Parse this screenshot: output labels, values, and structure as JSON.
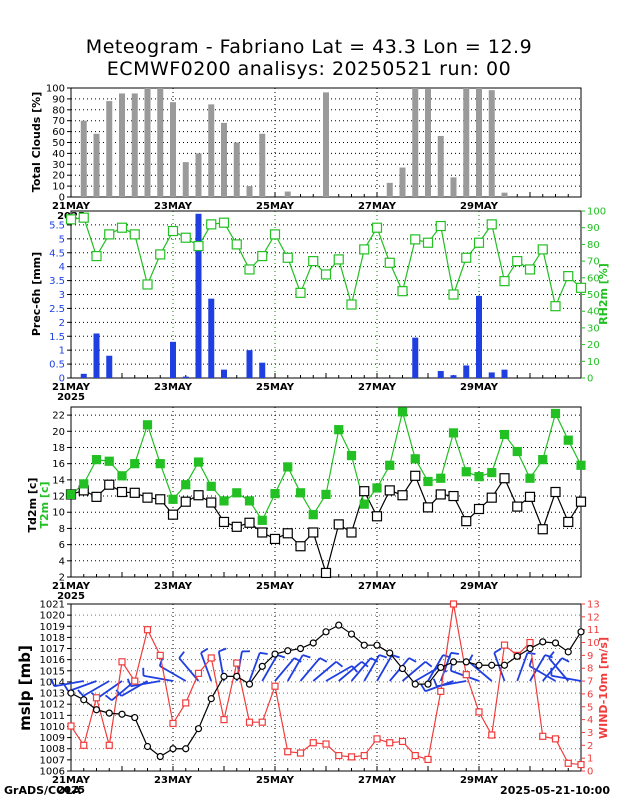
{
  "header": {
    "title_line1": "Meteogram - Fabriano Lat = 43.3 Lon = 12.9",
    "title_line2": "ECMWF0200 analisys: 20250521 run: 00"
  },
  "footer": {
    "left": "GrADS/COLA",
    "right": "2025-05-21-10:00"
  },
  "colors": {
    "clouds": "#9a9a9a",
    "precip": "#1f3fe0",
    "rh": "#22c022",
    "t2m": "#22c022",
    "td2m": "#000000",
    "mslp": "#000000",
    "wind": "#f03c3c",
    "barbs": "#1f3fe0",
    "grid": "#000000",
    "date_line": "#008800"
  },
  "chart_data": [
    {
      "id": "clouds",
      "type": "bar",
      "ylabel": "Total Clouds [%]",
      "ylim": [
        0,
        100
      ],
      "yticks": [
        0,
        10,
        20,
        30,
        40,
        50,
        60,
        70,
        80,
        90,
        100
      ],
      "grid": true,
      "xticks": [
        "21MAY",
        "23MAY",
        "25MAY",
        "27MAY",
        "29MAY"
      ],
      "xyear": "2025",
      "t": [
        0.25,
        0.5,
        0.75,
        1.0,
        1.25,
        1.5,
        1.75,
        2.0,
        2.25,
        2.5,
        2.75,
        3.0,
        3.25,
        3.5,
        3.75,
        4.25,
        5.0,
        6.25,
        6.5,
        6.75,
        7.0,
        7.25,
        7.5,
        7.75,
        8.0,
        8.25,
        8.5
      ],
      "values": [
        70,
        58,
        88,
        95,
        95,
        100,
        100,
        87,
        32,
        40,
        85,
        68,
        50,
        10,
        58,
        5,
        96,
        13,
        27,
        100,
        99,
        56,
        18,
        100,
        100,
        98,
        4
      ]
    },
    {
      "id": "precip_rh",
      "type": "bar+line",
      "ylabel": "Prec-6h [mm]",
      "ylim": [
        0,
        6
      ],
      "yticks": [
        0,
        0.5,
        1,
        1.5,
        2,
        2.5,
        3,
        3.5,
        4,
        4.5,
        5,
        5.5
      ],
      "y2label": "RH2m [%]",
      "y2lim": [
        0,
        100
      ],
      "y2ticks": [
        0,
        10,
        20,
        30,
        40,
        50,
        60,
        70,
        80,
        90,
        100
      ],
      "grid": true,
      "xticks": [
        "21MAY",
        "23MAY",
        "25MAY",
        "27MAY",
        "29MAY"
      ],
      "xyear": "2025",
      "precip_t": [
        0.25,
        0.5,
        0.75,
        2.0,
        2.25,
        2.5,
        2.75,
        3.0,
        3.5,
        3.75,
        6.75,
        7.25,
        7.5,
        7.75,
        8.0,
        8.25,
        8.5
      ],
      "precip": [
        0.15,
        1.6,
        0.8,
        1.3,
        0.05,
        5.9,
        2.85,
        0.3,
        1.0,
        0.55,
        1.45,
        0.25,
        0.1,
        0.45,
        2.95,
        0.2,
        0.3
      ],
      "rh_t": [
        0,
        0.25,
        0.5,
        0.75,
        1.0,
        1.25,
        1.5,
        1.75,
        2.0,
        2.25,
        2.5,
        2.75,
        3.0,
        3.25,
        3.5,
        3.75,
        4.0,
        4.25,
        4.5,
        4.75,
        5.0,
        5.25,
        5.5,
        5.75,
        6.0,
        6.25,
        6.5,
        6.75,
        7.0,
        7.25,
        7.5,
        7.75,
        8.0,
        8.25,
        8.5,
        8.75,
        9.0,
        9.25,
        9.5,
        9.75,
        10.0
      ],
      "rh": [
        95,
        96,
        73,
        86,
        90,
        86,
        56,
        74,
        88,
        84,
        79,
        92,
        93,
        80,
        65,
        73,
        86,
        72,
        51,
        70,
        62,
        71,
        44,
        77,
        90,
        69,
        52,
        83,
        81,
        91,
        50,
        72,
        81,
        92,
        58,
        70,
        65,
        77,
        43,
        61,
        54
      ]
    },
    {
      "id": "temperature",
      "type": "line",
      "ylabel_td": "Td2m [c]",
      "ylabel_t": "T2m [c]",
      "ylim": [
        2,
        23
      ],
      "yticks": [
        2,
        4,
        6,
        8,
        10,
        12,
        14,
        16,
        18,
        20,
        22
      ],
      "grid": true,
      "xticks": [
        "21MAY",
        "23MAY",
        "25MAY",
        "27MAY",
        "29MAY"
      ],
      "xyear": "2025",
      "t": [
        0,
        0.25,
        0.5,
        0.75,
        1.0,
        1.25,
        1.5,
        1.75,
        2.0,
        2.25,
        2.5,
        2.75,
        3.0,
        3.25,
        3.5,
        3.75,
        4.0,
        4.25,
        4.5,
        4.75,
        5.0,
        5.25,
        5.5,
        5.75,
        6.0,
        6.25,
        6.5,
        6.75,
        7.0,
        7.25,
        7.5,
        7.75,
        8.0,
        8.25,
        8.5,
        8.75,
        9.0,
        9.25,
        9.5,
        9.75,
        10.0
      ],
      "t2m": [
        12.2,
        13.5,
        16.5,
        16.3,
        14.5,
        16.0,
        20.8,
        16.0,
        11.6,
        13.4,
        16.2,
        13.2,
        11.4,
        12.4,
        11.4,
        9.0,
        12.3,
        15.6,
        12.4,
        9.7,
        12.2,
        20.2,
        17.0,
        11.0,
        13.0,
        15.8,
        22.4,
        16.6,
        13.8,
        14.2,
        19.8,
        15.0,
        14.4,
        14.9,
        19.6,
        17.5,
        14.2,
        16.5,
        22.2,
        18.9,
        15.8
      ],
      "td2m": [
        12.2,
        12.7,
        11.9,
        13.4,
        12.5,
        12.4,
        11.8,
        11.6,
        9.7,
        11.3,
        12.1,
        11.2,
        8.8,
        8.2,
        8.7,
        7.5,
        6.7,
        7.4,
        5.8,
        7.5,
        2.5,
        8.5,
        7.5,
        12.6,
        9.5,
        12.7,
        12.1,
        14.5,
        10.6,
        12.2,
        12.0,
        8.9,
        10.4,
        11.8,
        14.2,
        10.7,
        11.9,
        7.9,
        12.5,
        8.8,
        11.3
      ]
    },
    {
      "id": "mslp_wind",
      "type": "line",
      "ylabel": "mslp [mb]",
      "ylim": [
        1006,
        1021
      ],
      "yticks": [
        1006,
        1007,
        1008,
        1009,
        1010,
        1011,
        1012,
        1013,
        1014,
        1015,
        1016,
        1017,
        1018,
        1019,
        1020,
        1021
      ],
      "y2label": "WIND-10m [m/s]",
      "y2lim": [
        0,
        13
      ],
      "y2ticks": [
        0,
        1,
        2,
        3,
        4,
        5,
        6,
        7,
        8,
        9,
        10,
        11,
        12,
        13
      ],
      "grid": true,
      "xticks": [
        "21MAY",
        "23MAY",
        "25MAY",
        "27MAY",
        "29MAY"
      ],
      "xyear": "2025",
      "t": [
        0,
        0.25,
        0.5,
        0.75,
        1.0,
        1.25,
        1.5,
        1.75,
        2.0,
        2.25,
        2.5,
        2.75,
        3.0,
        3.25,
        3.5,
        3.75,
        4.0,
        4.25,
        4.5,
        4.75,
        5.0,
        5.25,
        5.5,
        5.75,
        6.0,
        6.25,
        6.5,
        6.75,
        7.0,
        7.25,
        7.5,
        7.75,
        8.0,
        8.25,
        8.5,
        8.75,
        9.0,
        9.25,
        9.5,
        9.75,
        10.0
      ],
      "mslp": [
        1013,
        1012.4,
        1011.5,
        1011.2,
        1011.1,
        1010.8,
        1008.2,
        1007.3,
        1008.0,
        1008.0,
        1009.8,
        1012.5,
        1014.5,
        1014.5,
        1013.8,
        1015.4,
        1016.5,
        1016.8,
        1017.0,
        1017.5,
        1018.5,
        1019.1,
        1018.3,
        1017.3,
        1017.3,
        1016.6,
        1015.2,
        1013.8,
        1013.8,
        1015.3,
        1015.8,
        1015.8,
        1015.5,
        1015.5,
        1015.5,
        1016.3,
        1017.0,
        1017.6,
        1017.5,
        1016.7,
        1018.5
      ],
      "wind": [
        3.5,
        2.0,
        5.7,
        2.0,
        8.5,
        7.0,
        11.0,
        9.0,
        3.7,
        5.3,
        7.6,
        8.8,
        4.0,
        8.4,
        3.8,
        3.8,
        6.6,
        1.5,
        1.4,
        2.2,
        2.1,
        1.2,
        1.1,
        1.2,
        2.5,
        2.2,
        2.3,
        1.2,
        0.9,
        6.2,
        13.0,
        7.5,
        4.6,
        2.8,
        9.8,
        9.0,
        10.0,
        2.7,
        2.5,
        0.6,
        0.5
      ],
      "barbs_dir": [
        250,
        260,
        250,
        240,
        235,
        230,
        240,
        260,
        280,
        300,
        320,
        340,
        350,
        10,
        20,
        30,
        40,
        30,
        40,
        50,
        60,
        50,
        40,
        30,
        30,
        40,
        50,
        60,
        30,
        20,
        250,
        260,
        290,
        310,
        340,
        20,
        30,
        40,
        300,
        320,
        280
      ]
    }
  ]
}
